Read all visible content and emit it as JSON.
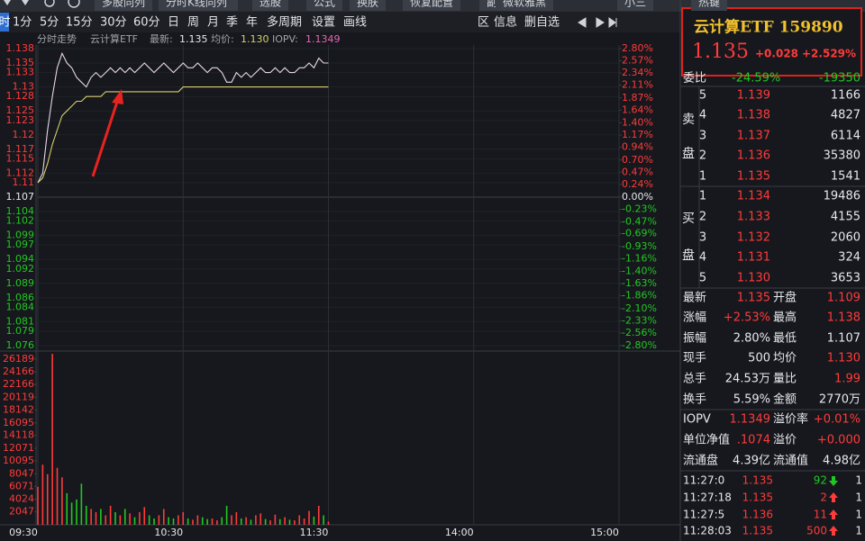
{
  "toolbar": {
    "buttons": [
      "多股同列",
      "分时K线同列",
      "选股",
      "公式",
      "换肤",
      "恢复配置",
      "副屏",
      "微软雅黑",
      "小三",
      "热键"
    ]
  },
  "period_tabs": {
    "active": "时",
    "items": [
      "1分",
      "5分",
      "15分",
      "30分",
      "60分",
      "日",
      "周",
      "月",
      "季",
      "年",
      "多周期",
      "设置",
      "画线"
    ],
    "right_items": [
      "区",
      "信息",
      "删自选"
    ]
  },
  "chart_header": {
    "mode": "分时走势",
    "name": "云计算ETF",
    "latest_label": "最新:",
    "latest": "1.135",
    "avg_label": "均价:",
    "avg": "1.130",
    "iopv_label": "IOPV:",
    "iopv": "1.1349"
  },
  "chart_data": [
    {
      "type": "line",
      "x": [
        "09:30",
        "09:32",
        "09:34",
        "09:36",
        "09:38",
        "09:40",
        "09:42",
        "09:44",
        "09:46",
        "09:48",
        "09:50",
        "09:52",
        "09:54",
        "09:56",
        "09:58",
        "10:00",
        "10:02",
        "10:04",
        "10:06",
        "10:08",
        "10:10",
        "10:12",
        "10:14",
        "10:16",
        "10:18",
        "10:20",
        "10:22",
        "10:24",
        "10:26",
        "10:28",
        "10:30",
        "10:32",
        "10:34",
        "10:36",
        "10:38",
        "10:40",
        "10:42",
        "10:44",
        "10:46",
        "10:48",
        "10:50",
        "10:52",
        "10:54",
        "10:56",
        "10:58",
        "11:00",
        "11:02",
        "11:04",
        "11:06",
        "11:08",
        "11:10",
        "11:12",
        "11:14",
        "11:16",
        "11:18",
        "11:20",
        "11:22",
        "11:24",
        "11:26",
        "11:28",
        "11:30"
      ],
      "series": [
        {
          "color": "#e8d6ea",
          "values": [
            1.11,
            1.112,
            1.121,
            1.128,
            1.134,
            1.137,
            1.135,
            1.134,
            1.132,
            1.131,
            1.13,
            1.132,
            1.133,
            1.132,
            1.133,
            1.134,
            1.133,
            1.134,
            1.133,
            1.134,
            1.133,
            1.134,
            1.135,
            1.134,
            1.133,
            1.134,
            1.135,
            1.134,
            1.133,
            1.134,
            1.135,
            1.134,
            1.134,
            1.135,
            1.134,
            1.133,
            1.134,
            1.134,
            1.133,
            1.131,
            1.131,
            1.133,
            1.132,
            1.133,
            1.132,
            1.133,
            1.134,
            1.133,
            1.133,
            1.134,
            1.133,
            1.134,
            1.133,
            1.133,
            1.134,
            1.134,
            1.135,
            1.134,
            1.136,
            1.135,
            1.135
          ]
        },
        {
          "color": "#d9cf6c",
          "values": [
            1.11,
            1.111,
            1.114,
            1.118,
            1.121,
            1.124,
            1.125,
            1.126,
            1.127,
            1.127,
            1.128,
            1.128,
            1.128,
            1.128,
            1.129,
            1.129,
            1.129,
            1.129,
            1.129,
            1.129,
            1.129,
            1.129,
            1.129,
            1.129,
            1.129,
            1.129,
            1.129,
            1.129,
            1.129,
            1.129,
            1.13,
            1.13,
            1.13,
            1.13,
            1.13,
            1.13,
            1.13,
            1.13,
            1.13,
            1.13,
            1.13,
            1.13,
            1.13,
            1.13,
            1.13,
            1.13,
            1.13,
            1.13,
            1.13,
            1.13,
            1.13,
            1.13,
            1.13,
            1.13,
            1.13,
            1.13,
            1.13,
            1.13,
            1.13,
            1.13,
            1.13
          ]
        }
      ],
      "xlim": [
        "09:30",
        "15:00"
      ],
      "ylim": [
        1.076,
        1.138
      ],
      "yticks": [
        1.138,
        1.135,
        1.133,
        1.13,
        1.128,
        1.125,
        1.123,
        1.12,
        1.117,
        1.115,
        1.112,
        1.11,
        1.107,
        1.104,
        1.102,
        1.099,
        1.097,
        1.094,
        1.092,
        1.089,
        1.086,
        1.084,
        1.081,
        1.079,
        1.076
      ],
      "y2lim": [
        -2.8,
        2.8
      ],
      "y2ticks": [
        {
          "value": 2.8,
          "label": "2.80%"
        },
        {
          "value": 2.57,
          "label": "2.57%"
        },
        {
          "value": 2.34,
          "label": "2.34%"
        },
        {
          "value": 2.11,
          "label": "2.11%"
        },
        {
          "value": 1.87,
          "label": "1.87%"
        },
        {
          "value": 1.64,
          "label": "1.64%"
        },
        {
          "value": 1.4,
          "label": "1.40%"
        },
        {
          "value": 1.17,
          "label": "1.17%"
        },
        {
          "value": 0.94,
          "label": "0.94%"
        },
        {
          "value": 0.7,
          "label": "0.70%"
        },
        {
          "value": 0.47,
          "label": "0.47%"
        },
        {
          "value": 0.24,
          "label": "0.24%"
        },
        {
          "value": 0,
          "label": "0.00%"
        },
        {
          "value": -0.23,
          "label": "-0.23%"
        },
        {
          "value": -0.47,
          "label": "-0.47%"
        },
        {
          "value": -0.69,
          "label": "-0.69%"
        },
        {
          "value": -0.93,
          "label": "-0.93%"
        },
        {
          "value": -1.16,
          "label": "-1.16%"
        },
        {
          "value": -1.4,
          "label": "-1.40%"
        },
        {
          "value": -1.63,
          "label": "-1.63%"
        },
        {
          "value": -1.86,
          "label": "-1.86%"
        },
        {
          "value": -2.1,
          "label": "-2.10%"
        },
        {
          "value": -2.33,
          "label": "-2.33%"
        },
        {
          "value": -2.56,
          "label": "-2.56%"
        },
        {
          "value": -2.8,
          "label": "-2.80%"
        }
      ]
    },
    {
      "type": "bar",
      "x": [
        "09:30",
        "09:32",
        "09:34",
        "09:36",
        "09:38",
        "09:40",
        "09:42",
        "09:44",
        "09:46",
        "09:48",
        "09:50",
        "09:52",
        "09:54",
        "09:56",
        "09:58",
        "10:00",
        "10:02",
        "10:04",
        "10:06",
        "10:08",
        "10:10",
        "10:12",
        "10:14",
        "10:16",
        "10:18",
        "10:20",
        "10:22",
        "10:24",
        "10:26",
        "10:28",
        "10:30",
        "10:32",
        "10:34",
        "10:36",
        "10:38",
        "10:40",
        "10:42",
        "10:44",
        "10:46",
        "10:48",
        "10:50",
        "10:52",
        "10:54",
        "10:56",
        "10:58",
        "11:00",
        "11:02",
        "11:04",
        "11:06",
        "11:08",
        "11:10",
        "11:12",
        "11:14",
        "11:16",
        "11:18",
        "11:20",
        "11:22",
        "11:24",
        "11:26",
        "11:28",
        "11:30"
      ],
      "values": [
        6000,
        9500,
        8000,
        27000,
        9000,
        7500,
        5000,
        3500,
        4000,
        6500,
        3000,
        2500,
        2000,
        2500,
        1500,
        3000,
        2000,
        1500,
        2500,
        1800,
        1200,
        2000,
        2800,
        1500,
        1000,
        1500,
        2500,
        1200,
        1000,
        1500,
        2000,
        1000,
        800,
        1500,
        1200,
        900,
        1000,
        700,
        1200,
        3000,
        1500,
        2000,
        1000,
        1200,
        800,
        1500,
        1800,
        900,
        700,
        1600,
        900,
        1200,
        800,
        700,
        1500,
        1000,
        2200,
        1300,
        3000,
        1500,
        500
      ],
      "up_color": "#ff3b3b",
      "down_color": "#22c822",
      "xlim": [
        "09:30",
        "15:00"
      ],
      "xticks": [
        "09:30",
        "10:30",
        "11:30",
        "14:00",
        "15:00"
      ],
      "ylim": [
        0,
        27300
      ],
      "yticks": [
        26189,
        24166,
        22166,
        20119,
        18142,
        16095,
        14118,
        12071,
        10095,
        8047,
        6071,
        4024,
        2047
      ]
    }
  ],
  "quote": {
    "name": "云计算ETF 159890",
    "price": "1.135",
    "change": "+0.028",
    "change_pct": "+2.529%"
  },
  "order_book": {
    "ratio_label": "委比",
    "ratio": "-24.59%",
    "ratio_diff": "-19350",
    "sell_label": [
      "卖",
      "盘"
    ],
    "buy_label": [
      "买",
      "盘"
    ],
    "asks": [
      [
        "5",
        "1.139",
        "1166"
      ],
      [
        "4",
        "1.138",
        "4827"
      ],
      [
        "3",
        "1.137",
        "6114"
      ],
      [
        "2",
        "1.136",
        "35380"
      ],
      [
        "1",
        "1.135",
        "1541"
      ]
    ],
    "bids": [
      [
        "1",
        "1.134",
        "19486"
      ],
      [
        "2",
        "1.133",
        "4155"
      ],
      [
        "3",
        "1.132",
        "2060"
      ],
      [
        "4",
        "1.131",
        "324"
      ],
      [
        "5",
        "1.130",
        "3653"
      ]
    ]
  },
  "stats": [
    [
      "最新",
      "1.135",
      "开盘",
      "1.109"
    ],
    [
      "涨幅",
      "+2.53%",
      "最高",
      "1.138"
    ],
    [
      "振幅",
      "2.80%",
      "最低",
      "1.107"
    ],
    [
      "现手",
      "500",
      "均价",
      "1.130"
    ],
    [
      "总手",
      "24.53万",
      "量比",
      "1.99"
    ],
    [
      "换手",
      "5.59%",
      "金额",
      "2770万"
    ],
    [
      "IOPV",
      "1.1349",
      "溢价率",
      "+0.01%"
    ],
    [
      "单位净值",
      ".1074",
      "溢价",
      "+0.000"
    ],
    [
      "流通盘",
      "4.39亿",
      "流通值",
      "4.98亿"
    ]
  ],
  "trades": [
    {
      "time": "11:27:0",
      "price": "1.135",
      "volume": "92",
      "dir": "down",
      "count": "1"
    },
    {
      "time": "11:27:18",
      "price": "1.135",
      "volume": "2",
      "dir": "up",
      "count": "1"
    },
    {
      "time": "11:27:5",
      "price": "1.136",
      "volume": "11",
      "dir": "up",
      "count": "1"
    },
    {
      "time": "11:28:03",
      "price": "1.135",
      "volume": "500",
      "dir": "up",
      "count": "1"
    }
  ]
}
